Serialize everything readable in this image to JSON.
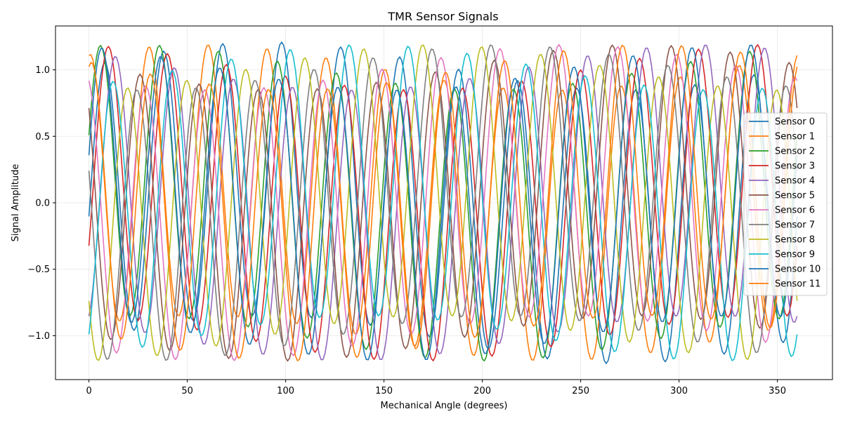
{
  "chart_data": {
    "type": "line",
    "title": "TMR Sensor Signals",
    "xlabel": "Mechanical Angle (degrees)",
    "ylabel": "Signal Amplitude",
    "xlim": [
      -17,
      378
    ],
    "ylim": [
      -1.33,
      1.33
    ],
    "xticks": [
      0,
      50,
      100,
      150,
      200,
      250,
      300,
      350
    ],
    "yticks": [
      -1.0,
      -0.5,
      0.0,
      0.5,
      1.0
    ],
    "ytick_labels": [
      "−1.0",
      "−0.5",
      "0.0",
      "0.5",
      "1.0"
    ],
    "grid": true,
    "legend_position": "right",
    "sample_step_deg": 1,
    "series": [
      {
        "name": "Sensor 0",
        "color": "#1f77b4",
        "amplitude": 1.03,
        "frequency": 12,
        "phase": -0.1,
        "harmonic_amplitude": 0.18,
        "harmonic_frequency": 1,
        "harmonic_phase": 0.0
      },
      {
        "name": "Sensor 1",
        "color": "#ff7f0e",
        "amplitude": 1.02,
        "frequency": 12,
        "phase": 1.45,
        "harmonic_amplitude": 0.17,
        "harmonic_frequency": 1,
        "harmonic_phase": 0.6
      },
      {
        "name": "Sensor 2",
        "color": "#2ca02c",
        "amplitude": 1.02,
        "frequency": 12,
        "phase": 0.35,
        "harmonic_amplitude": 0.17,
        "harmonic_frequency": 1,
        "harmonic_phase": 1.2
      },
      {
        "name": "Sensor 3",
        "color": "#d62728",
        "amplitude": 1.02,
        "frequency": 12,
        "phase": -0.5,
        "harmonic_amplitude": 0.17,
        "harmonic_frequency": 1,
        "harmonic_phase": 1.8
      },
      {
        "name": "Sensor 4",
        "color": "#9467bd",
        "amplitude": 1.02,
        "frequency": 12,
        "phase": -1.25,
        "harmonic_amplitude": 0.17,
        "harmonic_frequency": 1,
        "harmonic_phase": 2.4
      },
      {
        "name": "Sensor 5",
        "color": "#8c564b",
        "amplitude": 1.02,
        "frequency": 12,
        "phase": 2.4,
        "harmonic_amplitude": 0.17,
        "harmonic_frequency": 1,
        "harmonic_phase": 3.0
      },
      {
        "name": "Sensor 6",
        "color": "#e377c2",
        "amplitude": 1.02,
        "frequency": 12,
        "phase": 1.8,
        "harmonic_amplitude": 0.17,
        "harmonic_frequency": 1,
        "harmonic_phase": 3.6
      },
      {
        "name": "Sensor 7",
        "color": "#7f7f7f",
        "amplitude": 1.02,
        "frequency": 12,
        "phase": 2.75,
        "harmonic_amplitude": 0.17,
        "harmonic_frequency": 1,
        "harmonic_phase": 4.2
      },
      {
        "name": "Sensor 8",
        "color": "#bcbd22",
        "amplitude": 1.02,
        "frequency": 12,
        "phase": -2.55,
        "harmonic_amplitude": 0.17,
        "harmonic_frequency": 1,
        "harmonic_phase": 4.8
      },
      {
        "name": "Sensor 9",
        "color": "#17becf",
        "amplitude": 1.02,
        "frequency": 12,
        "phase": -1.0,
        "harmonic_amplitude": 0.17,
        "harmonic_frequency": 1,
        "harmonic_phase": 5.4
      },
      {
        "name": "Sensor 10",
        "color": "#1f77b4",
        "amplitude": 1.02,
        "frequency": 12,
        "phase": 0.2,
        "harmonic_amplitude": 0.17,
        "harmonic_frequency": 1,
        "harmonic_phase": 2.0
      },
      {
        "name": "Sensor 11",
        "color": "#ff7f0e",
        "amplitude": 1.02,
        "frequency": 12,
        "phase": 1.3,
        "harmonic_amplitude": 0.17,
        "harmonic_frequency": 1,
        "harmonic_phase": 2.9
      }
    ]
  }
}
